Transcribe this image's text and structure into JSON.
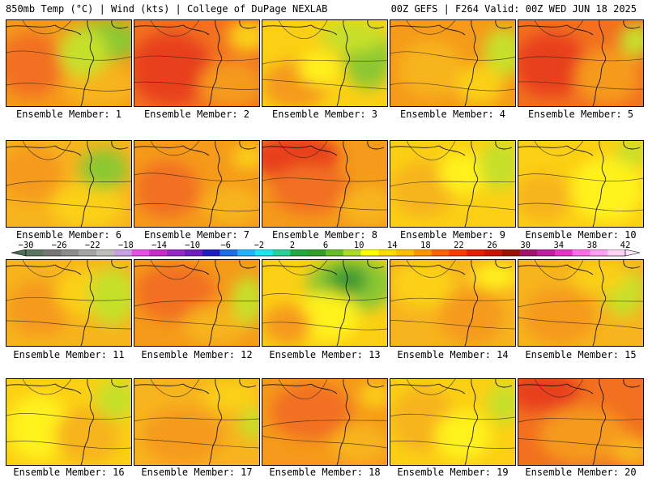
{
  "header": {
    "left": "850mb Temp (°C) | Wind (kts) | College of DuPage NEXLAB",
    "right": "00Z GEFS | F264 Valid: 00Z WED JUN 18 2025"
  },
  "colorbar": {
    "labels": [
      "−30",
      "−26",
      "−22",
      "−18",
      "−14",
      "−10",
      "−6",
      "−2",
      "2",
      "6",
      "10",
      "14",
      "18",
      "22",
      "26",
      "30",
      "34",
      "38",
      "42"
    ],
    "colors": [
      "#5a7560",
      "#767676",
      "#8c8c8c",
      "#a5a5a5",
      "#bebebe",
      "#c8a0e6",
      "#e650e6",
      "#c82dc8",
      "#9628c8",
      "#6e1ebe",
      "#1e1ebe",
      "#1e6ee6",
      "#1eb4ff",
      "#1ee6f0",
      "#28d296",
      "#1eaa3c",
      "#32a028",
      "#64be28",
      "#aadc28",
      "#ffff00",
      "#ffdc00",
      "#ffbe00",
      "#ff9600",
      "#ff6400",
      "#ff3c00",
      "#e61e00",
      "#c81400",
      "#961400",
      "#a0146e",
      "#be1ea0",
      "#e632c8",
      "#ff6ee6",
      "#ffa0f0",
      "#ffd2f5"
    ]
  },
  "members": [
    {
      "label": "Ensemble Member: 1"
    },
    {
      "label": "Ensemble Member: 2"
    },
    {
      "label": "Ensemble Member: 3"
    },
    {
      "label": "Ensemble Member: 4"
    },
    {
      "label": "Ensemble Member: 5"
    },
    {
      "label": "Ensemble Member: 6"
    },
    {
      "label": "Ensemble Member: 7"
    },
    {
      "label": "Ensemble Member: 8"
    },
    {
      "label": "Ensemble Member: 9"
    },
    {
      "label": "Ensemble Member: 10"
    },
    {
      "label": "Ensemble Member: 11"
    },
    {
      "label": "Ensemble Member: 12"
    },
    {
      "label": "Ensemble Member: 13"
    },
    {
      "label": "Ensemble Member: 14"
    },
    {
      "label": "Ensemble Member: 15"
    },
    {
      "label": "Ensemble Member: 16"
    },
    {
      "label": "Ensemble Member: 17"
    },
    {
      "label": "Ensemble Member: 18"
    },
    {
      "label": "Ensemble Member: 19"
    },
    {
      "label": "Ensemble Member: 20"
    }
  ],
  "palette": {
    "red": "#e8401a",
    "orange_red": "#f27020",
    "orange": "#f59a1a",
    "light_orange": "#f7b41e",
    "yellow_orange": "#fbd014",
    "yellow": "#fff21a",
    "lime": "#c6e02a",
    "green": "#8cc832",
    "dark_green": "#3c9a30"
  }
}
